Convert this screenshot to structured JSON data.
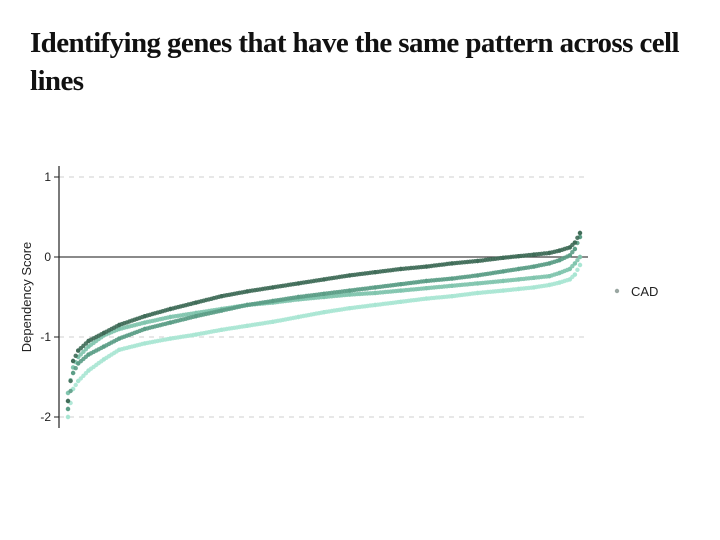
{
  "slide": {
    "title": "Identifying genes that have the same pattern across cell lines"
  },
  "chart_data": {
    "type": "scatter",
    "title": "",
    "xlabel": "",
    "ylabel": "Dependency Score",
    "xlim": [
      0,
      100
    ],
    "ylim": [
      -2.1,
      1.1
    ],
    "yticks": [
      {
        "value": 1,
        "label": "1"
      },
      {
        "value": 0,
        "label": "0"
      },
      {
        "value": -1,
        "label": "-1"
      },
      {
        "value": -2,
        "label": "-2"
      }
    ],
    "grid": true,
    "zero_line": true,
    "legend": {
      "position": "right",
      "entries": [
        "CAD"
      ]
    },
    "series": [
      {
        "name": "CAD",
        "color": "#3f6b58",
        "x": [
          0,
          1,
          2,
          4,
          7,
          10,
          15,
          20,
          25,
          30,
          35,
          40,
          45,
          50,
          55,
          60,
          65,
          70,
          75,
          80,
          85,
          88,
          91,
          94,
          96,
          98,
          99,
          100
        ],
        "y": [
          -1.8,
          -1.3,
          -1.17,
          -1.05,
          -0.95,
          -0.85,
          -0.74,
          -0.65,
          -0.57,
          -0.49,
          -0.43,
          -0.38,
          -0.33,
          -0.28,
          -0.23,
          -0.19,
          -0.15,
          -0.12,
          -0.08,
          -0.05,
          -0.01,
          0.01,
          0.03,
          0.05,
          0.08,
          0.12,
          0.18,
          0.3
        ]
      },
      {
        "color": "#5b9d86",
        "x": [
          0,
          1,
          2,
          4,
          7,
          10,
          15,
          20,
          25,
          30,
          35,
          40,
          45,
          50,
          55,
          60,
          65,
          70,
          75,
          80,
          85,
          88,
          91,
          94,
          96,
          98,
          99,
          100
        ],
        "y": [
          -1.9,
          -1.45,
          -1.33,
          -1.22,
          -1.12,
          -1.02,
          -0.9,
          -0.82,
          -0.74,
          -0.67,
          -0.6,
          -0.55,
          -0.5,
          -0.46,
          -0.42,
          -0.38,
          -0.34,
          -0.3,
          -0.27,
          -0.23,
          -0.18,
          -0.15,
          -0.12,
          -0.08,
          -0.04,
          0.02,
          0.1,
          0.25
        ]
      },
      {
        "color": "#7fc4ad",
        "x": [
          0,
          1,
          2,
          4,
          7,
          10,
          15,
          20,
          25,
          30,
          35,
          40,
          45,
          50,
          55,
          60,
          65,
          70,
          75,
          80,
          85,
          88,
          91,
          94,
          96,
          98,
          99,
          100
        ],
        "y": [
          -1.7,
          -1.38,
          -1.25,
          -1.12,
          -0.98,
          -0.9,
          -0.82,
          -0.75,
          -0.7,
          -0.65,
          -0.6,
          -0.57,
          -0.53,
          -0.5,
          -0.47,
          -0.45,
          -0.42,
          -0.39,
          -0.36,
          -0.33,
          -0.3,
          -0.28,
          -0.26,
          -0.24,
          -0.2,
          -0.15,
          -0.08,
          0.0
        ]
      },
      {
        "color": "#a9e6d3",
        "x": [
          0,
          1,
          2,
          4,
          7,
          10,
          15,
          20,
          25,
          30,
          35,
          40,
          45,
          50,
          55,
          60,
          65,
          70,
          75,
          80,
          85,
          88,
          91,
          94,
          96,
          98,
          99,
          100
        ],
        "y": [
          -2.0,
          -1.65,
          -1.55,
          -1.42,
          -1.28,
          -1.16,
          -1.08,
          -1.02,
          -0.97,
          -0.91,
          -0.86,
          -0.81,
          -0.75,
          -0.69,
          -0.64,
          -0.6,
          -0.56,
          -0.52,
          -0.49,
          -0.45,
          -0.42,
          -0.4,
          -0.38,
          -0.35,
          -0.32,
          -0.28,
          -0.22,
          -0.1
        ]
      }
    ]
  }
}
